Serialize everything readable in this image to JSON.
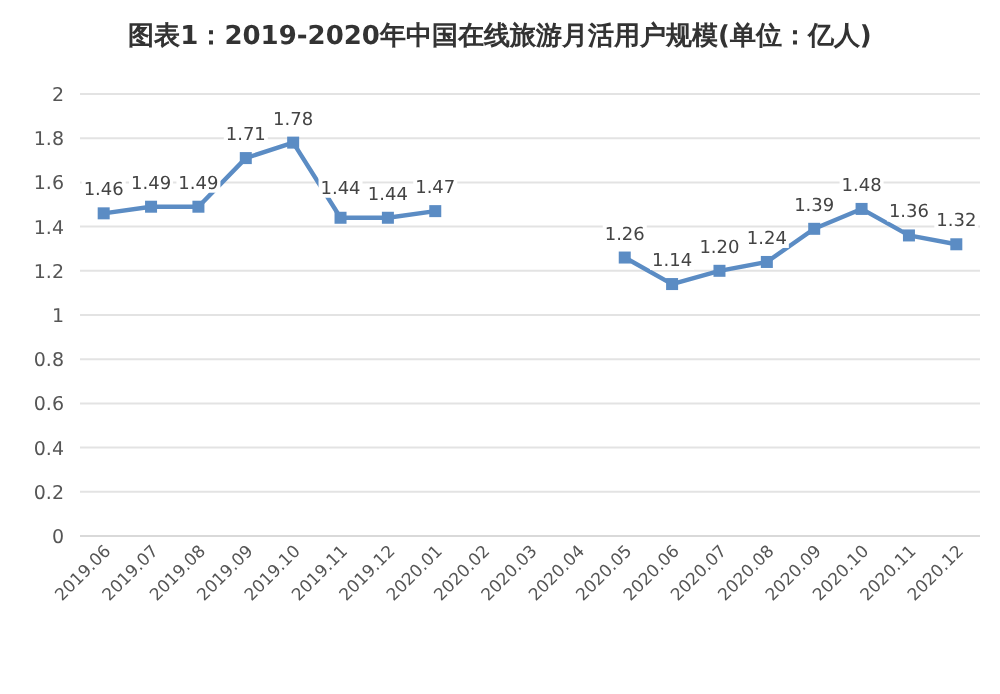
{
  "chart_data": {
    "type": "line",
    "title": "图表1：2019-2020年中国在线旅游月活用户规模(单位：亿人)",
    "categories": [
      "2019.06",
      "2019.07",
      "2019.08",
      "2019.09",
      "2019.10",
      "2019.11",
      "2019.12",
      "2020.01",
      "2020.02",
      "2020.03",
      "2020.04",
      "2020.05",
      "2020.06",
      "2020.07",
      "2020.08",
      "2020.09",
      "2020.10",
      "2020.11",
      "2020.12"
    ],
    "values": [
      1.46,
      1.49,
      1.49,
      1.71,
      1.78,
      1.44,
      1.44,
      1.47,
      null,
      null,
      null,
      1.26,
      1.14,
      1.2,
      1.24,
      1.39,
      1.48,
      1.36,
      1.32
    ],
    "value_labels": [
      "1.46",
      "1.49",
      "1.49",
      "1.71",
      "1.78",
      "1.44",
      "1.44",
      "1.47",
      null,
      null,
      null,
      "1.26",
      "1.14",
      "1.20",
      "1.24",
      "1.39",
      "1.48",
      "1.36",
      "1.32"
    ],
    "color": "#5b8cc4",
    "marker": "square",
    "line_style": "solid",
    "grid": "y",
    "ylim": [
      0,
      2
    ],
    "yticks": [
      0,
      0.2,
      0.4,
      0.6,
      0.8,
      1,
      1.2,
      1.4,
      1.6,
      1.8,
      2
    ]
  }
}
